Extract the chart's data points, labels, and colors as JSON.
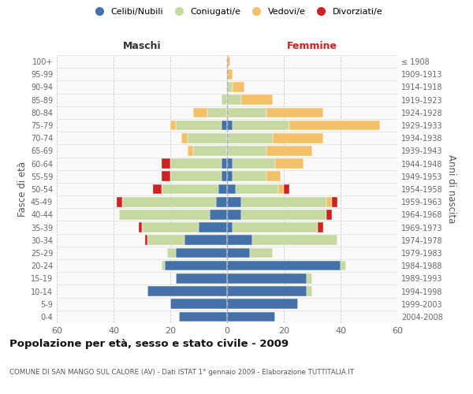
{
  "age_groups": [
    "0-4",
    "5-9",
    "10-14",
    "15-19",
    "20-24",
    "25-29",
    "30-34",
    "35-39",
    "40-44",
    "45-49",
    "50-54",
    "55-59",
    "60-64",
    "65-69",
    "70-74",
    "75-79",
    "80-84",
    "85-89",
    "90-94",
    "95-99",
    "100+"
  ],
  "birth_years": [
    "2004-2008",
    "1999-2003",
    "1994-1998",
    "1989-1993",
    "1984-1988",
    "1979-1983",
    "1974-1978",
    "1969-1973",
    "1964-1968",
    "1959-1963",
    "1954-1958",
    "1949-1953",
    "1944-1948",
    "1939-1943",
    "1934-1938",
    "1929-1933",
    "1924-1928",
    "1919-1923",
    "1914-1918",
    "1909-1913",
    "≤ 1908"
  ],
  "maschi": {
    "celibi": [
      17,
      20,
      28,
      18,
      22,
      18,
      15,
      10,
      6,
      4,
      3,
      2,
      2,
      0,
      0,
      2,
      0,
      0,
      0,
      0,
      0
    ],
    "coniugati": [
      0,
      0,
      0,
      0,
      1,
      3,
      13,
      20,
      32,
      33,
      20,
      18,
      18,
      12,
      14,
      16,
      7,
      2,
      0,
      0,
      0
    ],
    "vedovi": [
      0,
      0,
      0,
      0,
      0,
      0,
      0,
      0,
      0,
      0,
      0,
      0,
      0,
      2,
      2,
      2,
      5,
      0,
      0,
      0,
      0
    ],
    "divorziati": [
      0,
      0,
      0,
      0,
      0,
      0,
      1,
      1,
      0,
      2,
      3,
      3,
      3,
      0,
      0,
      0,
      0,
      0,
      0,
      0,
      0
    ]
  },
  "femmine": {
    "nubili": [
      17,
      25,
      28,
      28,
      40,
      8,
      9,
      2,
      5,
      5,
      3,
      2,
      2,
      0,
      0,
      2,
      0,
      0,
      0,
      0,
      0
    ],
    "coniugate": [
      0,
      0,
      2,
      2,
      2,
      8,
      30,
      30,
      30,
      30,
      15,
      12,
      15,
      14,
      16,
      20,
      14,
      5,
      2,
      0,
      0
    ],
    "vedove": [
      0,
      0,
      0,
      0,
      0,
      0,
      0,
      0,
      0,
      2,
      2,
      5,
      10,
      16,
      18,
      32,
      20,
      11,
      4,
      2,
      1
    ],
    "divorziate": [
      0,
      0,
      0,
      0,
      0,
      0,
      0,
      2,
      2,
      2,
      2,
      0,
      0,
      0,
      0,
      0,
      0,
      0,
      0,
      0,
      0
    ]
  },
  "colors": {
    "celibi": "#4472a8",
    "coniugati": "#c5d9a0",
    "vedovi": "#f5c06a",
    "divorziati": "#cc2222"
  },
  "xlim": 60,
  "title": "Popolazione per età, sesso e stato civile - 2009",
  "subtitle": "COMUNE DI SAN MANGO SUL CALORE (AV) - Dati ISTAT 1° gennaio 2009 - Elaborazione TUTTITALIA.IT",
  "ylabel_left": "Fasce di età",
  "ylabel_right": "Anni di nascita",
  "xlabel_maschi": "Maschi",
  "xlabel_femmine": "Femmine"
}
